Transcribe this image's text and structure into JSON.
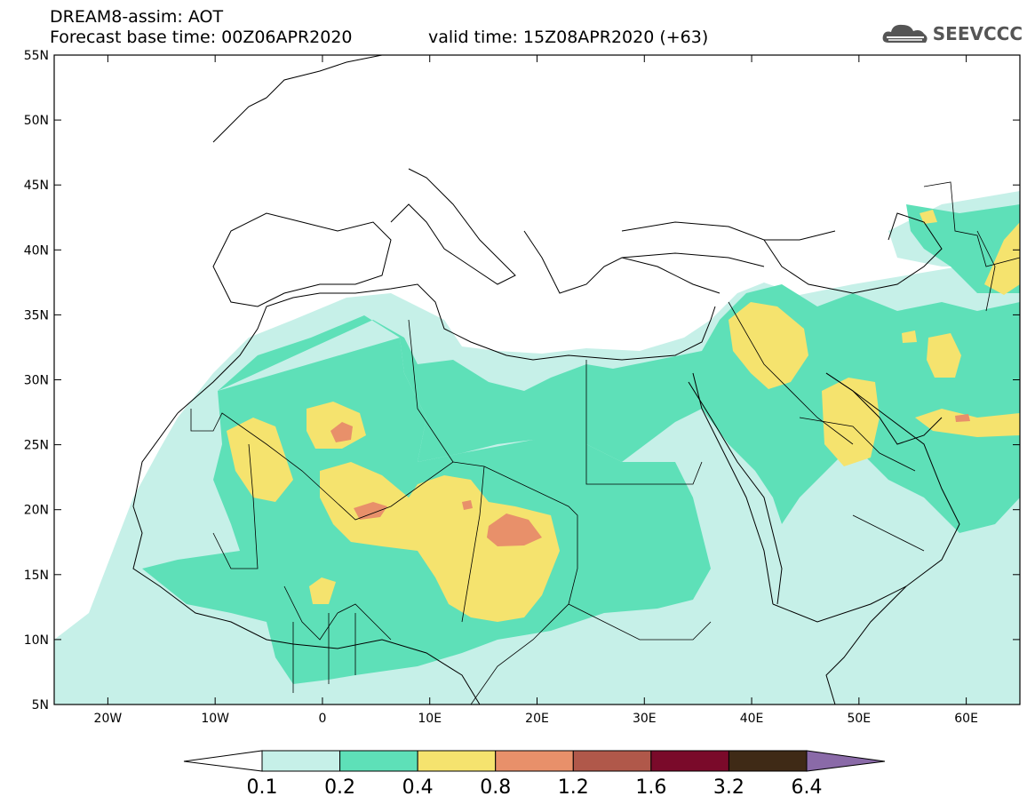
{
  "header": {
    "line1": "DREAM8-assim: AOT",
    "line2": "Forecast base time: 00Z06APR2020",
    "line2b": "valid time: 15Z08APR2020 (+63)"
  },
  "logo": {
    "text": "SEEVCCC",
    "icon": "cloud-icon"
  },
  "map": {
    "lon_range": [
      -25,
      65
    ],
    "lat_range": [
      5,
      55
    ],
    "lat_ticks": [
      "55N",
      "50N",
      "45N",
      "40N",
      "35N",
      "30N",
      "25N",
      "20N",
      "15N",
      "10N",
      "5N"
    ],
    "lon_ticks": [
      "20W",
      "10W",
      "0",
      "10E",
      "20E",
      "30E",
      "40E",
      "50E",
      "60E"
    ]
  },
  "colorbar": {
    "labels": [
      "0.1",
      "0.2",
      "0.4",
      "0.8",
      "1.2",
      "1.6",
      "3.2",
      "6.4"
    ],
    "colors": [
      "#c6f0e8",
      "#5ee0b8",
      "#f5e36e",
      "#e8906a",
      "#b0584a",
      "#7a0a2a",
      "#3f2a16",
      "#8a6aa8"
    ]
  }
}
